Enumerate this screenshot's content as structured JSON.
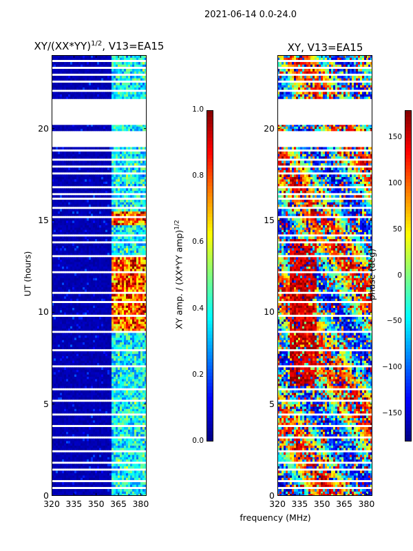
{
  "figure": {
    "suptitle": "2021-06-14 0.0-24.0",
    "xlabel": "frequency (MHz)"
  },
  "chart_data": [
    {
      "type": "heatmap",
      "title_main": "XY/(XX*YY)",
      "title_sup": "1/2",
      "title_suffix": ", V13=EA15",
      "xlabel": "frequency (MHz)",
      "ylabel": "UT (hours)",
      "xlim": [
        320,
        384
      ],
      "ylim": [
        0,
        24
      ],
      "xticks": [
        320,
        335,
        350,
        365,
        380
      ],
      "yticks": [
        0,
        5,
        10,
        15,
        20
      ],
      "colormap": "jet",
      "colorbar": {
        "label_main": "XY amp. / (XX*YY amp)",
        "label_sup": "1/2",
        "range": [
          0.0,
          1.0
        ],
        "ticks": [
          "0.0",
          "0.2",
          "0.4",
          "0.6",
          "0.8",
          "1.0"
        ]
      },
      "notes": "Background near 0 below ~361 MHz; bright channels 361-384 MHz, strongest 9-13 UT and 14.7-15.5 UT",
      "flagged_hours": [
        [
          19.0,
          19.8
        ],
        [
          20.2,
          21.6
        ]
      ]
    },
    {
      "type": "heatmap",
      "title": "XY, V13=EA15",
      "xlabel": "frequency (MHz)",
      "ylabel": "",
      "xlim": [
        320,
        384
      ],
      "ylim": [
        0,
        24
      ],
      "xticks": [
        320,
        335,
        350,
        365,
        380
      ],
      "yticks": [
        0,
        5,
        10,
        15,
        20
      ],
      "colormap": "jet",
      "colorbar": {
        "label": "phase (deg)",
        "range": [
          -180,
          180
        ],
        "ticks": [
          "−150",
          "−100",
          "−50",
          "0",
          "50",
          "100",
          "150"
        ]
      },
      "notes": "Phase scattered between -180 and 180 deg; red band around 330-345 MHz from 6 to 14 UT",
      "flagged_hours": [
        [
          19.0,
          19.8
        ],
        [
          20.2,
          21.6
        ]
      ]
    }
  ]
}
